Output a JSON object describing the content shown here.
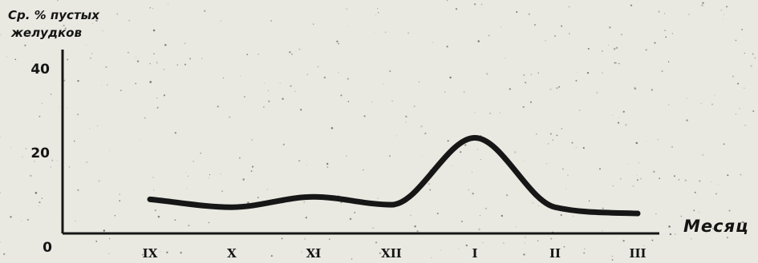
{
  "chart_data": {
    "type": "line",
    "title": "",
    "ylabel_lines": [
      "Ср. % пустых",
      "желудков"
    ],
    "xlabel": "Месяц",
    "categories": [
      "IX",
      "X",
      "XI",
      "XII",
      "I",
      "II",
      "III"
    ],
    "yticks": [
      "0",
      "20",
      "40"
    ],
    "ylim": [
      0,
      46
    ],
    "series": [
      {
        "values": [
          8.2,
          6.3,
          8.8,
          6.9,
          23.0,
          6.3,
          4.8
        ]
      }
    ],
    "grid": false,
    "colors": {
      "line": "#161616",
      "axis": "#161616",
      "background": "#e9e9e2"
    }
  }
}
